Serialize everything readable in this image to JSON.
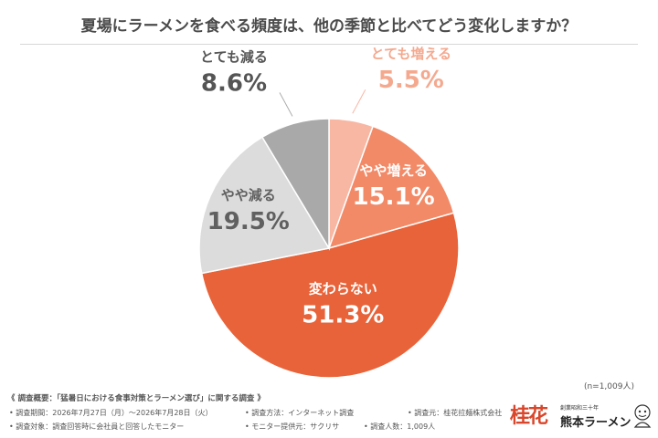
{
  "title": "夏場にラーメンを食べる頻度は、他の季節と比べてどう変化しますか？",
  "sample_note": "(n=1,009人)",
  "survey": {
    "overview": "《 調査概要：「猛暑日における食事対策とラーメン選び」に関する調査 》",
    "period": "• 調査期間：2026年7月27日（月）～2026年7月28日（火）",
    "method": "• 調査方法：インターネット調査",
    "source": "• 調査元：桂花拉麺株式会社",
    "target": "• 調査対象：調査回答時に会社員と回答したモニター",
    "provider": "• モニター提供元：サクリサ",
    "count": "• 調査人数：1,009人"
  },
  "brand": {
    "mark": "桂花",
    "tagline": "創業昭和三十年",
    "name": "熊本ラーメン"
  },
  "chart_data": {
    "type": "pie",
    "title": "夏場にラーメンを食べる頻度は、他の季節と比べてどう変化しますか？",
    "start": "12 o'clock, clockwise",
    "series": [
      {
        "label": "とても増える",
        "value": 5.5,
        "display": "5.5%",
        "color": "#f8b7a3",
        "text_color": "#f4a98f",
        "label_outside": true
      },
      {
        "label": "やや増える",
        "value": 15.1,
        "display": "15.1%",
        "color": "#f28a67",
        "text_color": "#ffffff",
        "label_outside": false
      },
      {
        "label": "変わらない",
        "value": 51.3,
        "display": "51.3%",
        "color": "#e86339",
        "text_color": "#ffffff",
        "label_outside": false
      },
      {
        "label": "やや減る",
        "value": 19.5,
        "display": "19.5%",
        "color": "#dcdcdc",
        "text_color": "#606060",
        "label_outside": false
      },
      {
        "label": "とても減る",
        "value": 8.6,
        "display": "8.6%",
        "color": "#a9a9a9",
        "text_color": "#555555",
        "label_outside": true
      }
    ]
  }
}
